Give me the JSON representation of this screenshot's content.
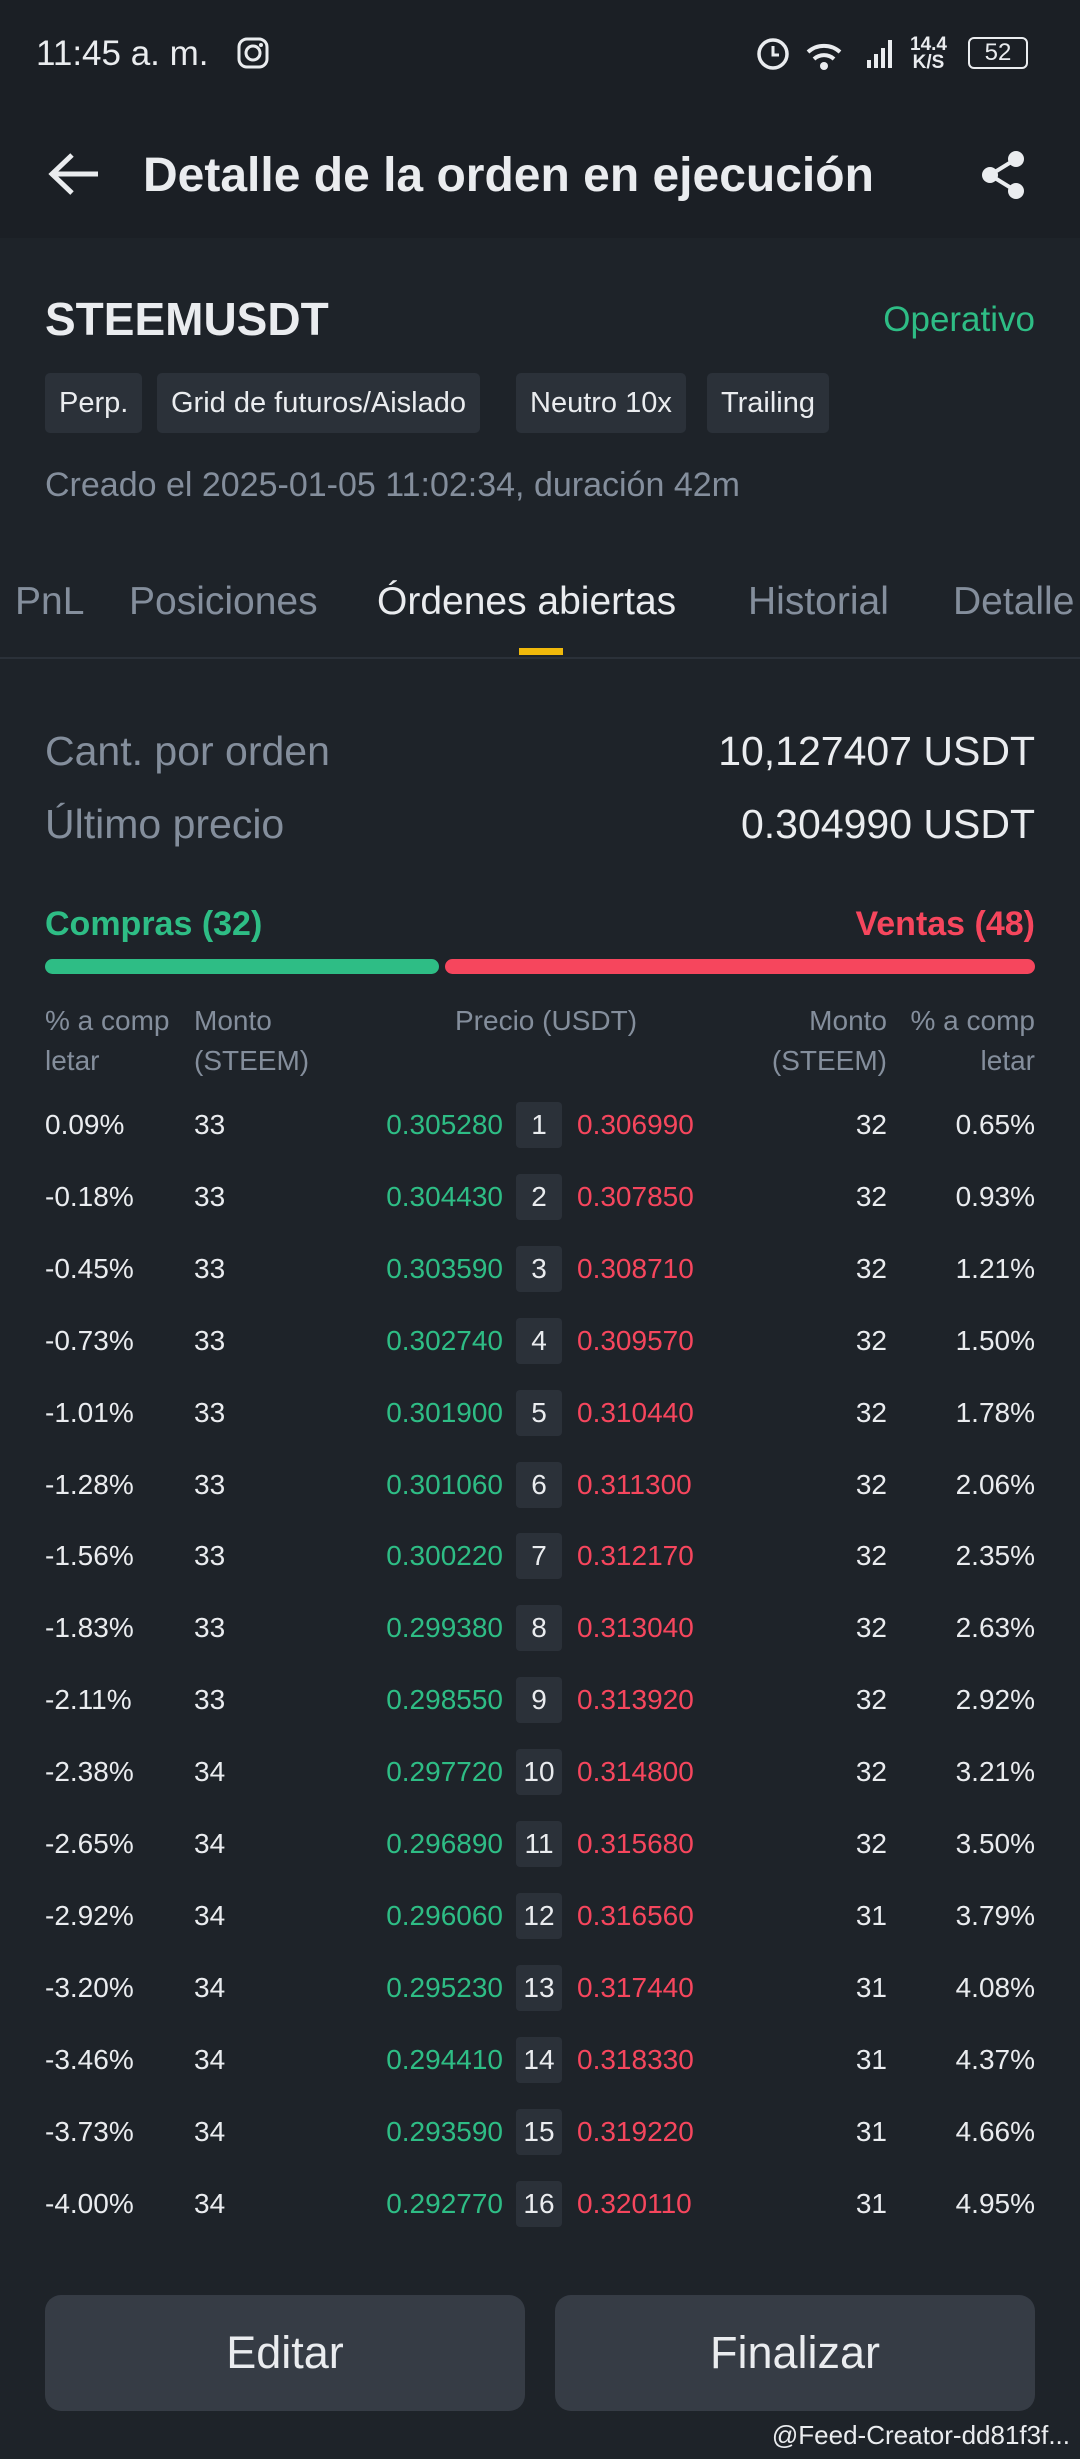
{
  "status_bar": {
    "time": "11:45 a. m.",
    "speed": "14.4",
    "speed_unit": "K/S",
    "battery": "52"
  },
  "header": {
    "title": "Detalle de la orden en ejecución"
  },
  "pair": {
    "symbol": "STEEMUSDT",
    "status": "Operativo",
    "tags": [
      "Perp.",
      "Grid de futuros/Aislado",
      "Neutro 10x",
      "Trailing"
    ],
    "created": "Creado el 2025-01-05 11:02:34, duración 42m"
  },
  "tabs": {
    "items": [
      "PnL",
      "Posiciones",
      "Órdenes abiertas",
      "Historial",
      "Detalle"
    ],
    "active": 2
  },
  "stats": [
    {
      "label": "Cant. por orden",
      "value": "10,127407 USDT"
    },
    {
      "label": "Último precio",
      "value": "0.304990 USDT"
    }
  ],
  "sides": {
    "buy": "Compras (32)",
    "sell": "Ventas (48)"
  },
  "table": {
    "headers": [
      "% a comp letar",
      "Monto (STEEM)",
      "Precio (USDT)",
      "Monto (STEEM)",
      "% a comp letar"
    ],
    "rows": [
      [
        "0.09%",
        "33",
        "0.305280",
        "1",
        "0.306990",
        "32",
        "0.65%"
      ],
      [
        "-0.18%",
        "33",
        "0.304430",
        "2",
        "0.307850",
        "32",
        "0.93%"
      ],
      [
        "-0.45%",
        "33",
        "0.303590",
        "3",
        "0.308710",
        "32",
        "1.21%"
      ],
      [
        "-0.73%",
        "33",
        "0.302740",
        "4",
        "0.309570",
        "32",
        "1.50%"
      ],
      [
        "-1.01%",
        "33",
        "0.301900",
        "5",
        "0.310440",
        "32",
        "1.78%"
      ],
      [
        "-1.28%",
        "33",
        "0.301060",
        "6",
        "0.311300",
        "32",
        "2.06%"
      ],
      [
        "-1.56%",
        "33",
        "0.300220",
        "7",
        "0.312170",
        "32",
        "2.35%"
      ],
      [
        "-1.83%",
        "33",
        "0.299380",
        "8",
        "0.313040",
        "32",
        "2.63%"
      ],
      [
        "-2.11%",
        "33",
        "0.298550",
        "9",
        "0.313920",
        "32",
        "2.92%"
      ],
      [
        "-2.38%",
        "34",
        "0.297720",
        "10",
        "0.314800",
        "32",
        "3.21%"
      ],
      [
        "-2.65%",
        "34",
        "0.296890",
        "11",
        "0.315680",
        "32",
        "3.50%"
      ],
      [
        "-2.92%",
        "34",
        "0.296060",
        "12",
        "0.316560",
        "31",
        "3.79%"
      ],
      [
        "-3.20%",
        "34",
        "0.295230",
        "13",
        "0.317440",
        "31",
        "4.08%"
      ],
      [
        "-3.46%",
        "34",
        "0.294410",
        "14",
        "0.318330",
        "31",
        "4.37%"
      ],
      [
        "-3.73%",
        "34",
        "0.293590",
        "15",
        "0.319220",
        "31",
        "4.66%"
      ],
      [
        "-4.00%",
        "34",
        "0.292770",
        "16",
        "0.320110",
        "31",
        "4.95%"
      ]
    ]
  },
  "buttons": [
    "Editar",
    "Finalizar"
  ],
  "watermark": "@Feed-Creator-dd81f3f..."
}
